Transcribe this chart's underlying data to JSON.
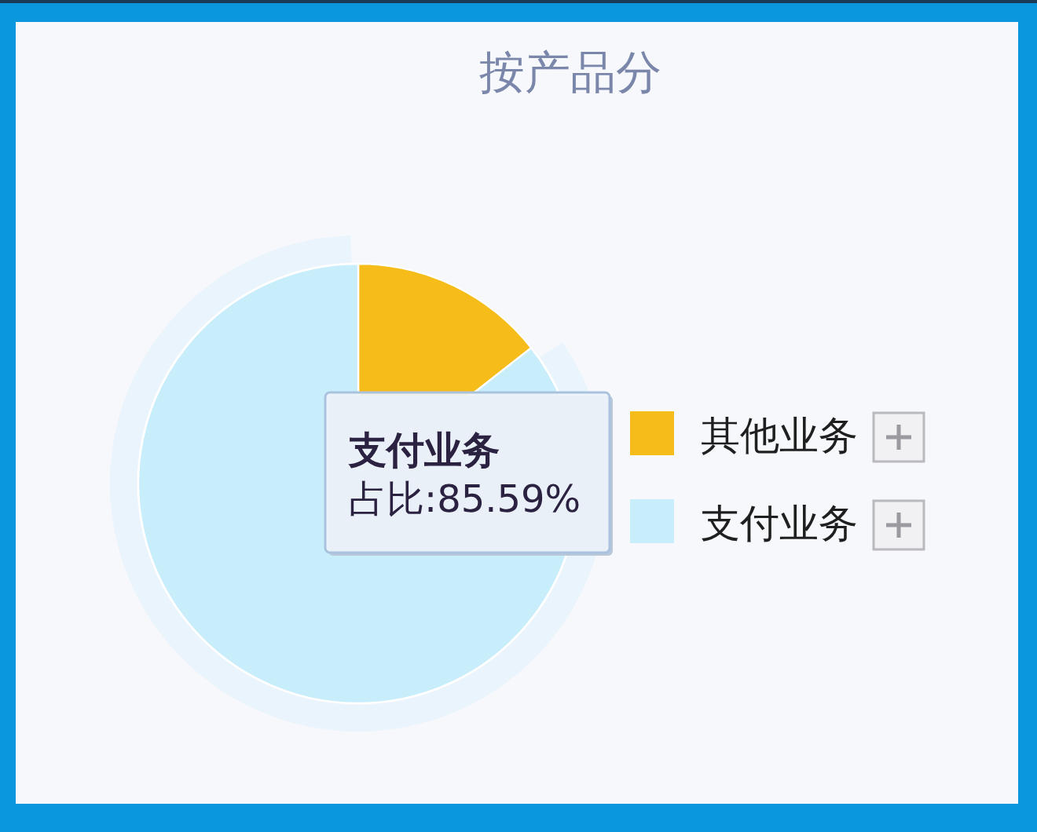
{
  "chart_data": {
    "type": "pie",
    "title": "按产品分",
    "categories": [
      "其他业务",
      "支付业务"
    ],
    "values": [
      14.41,
      85.59
    ],
    "colors": [
      "#f6bc1a",
      "#c8edfb"
    ],
    "legend": "right",
    "annotations": [
      "支付业务",
      "占比:85.59%"
    ]
  }
}
